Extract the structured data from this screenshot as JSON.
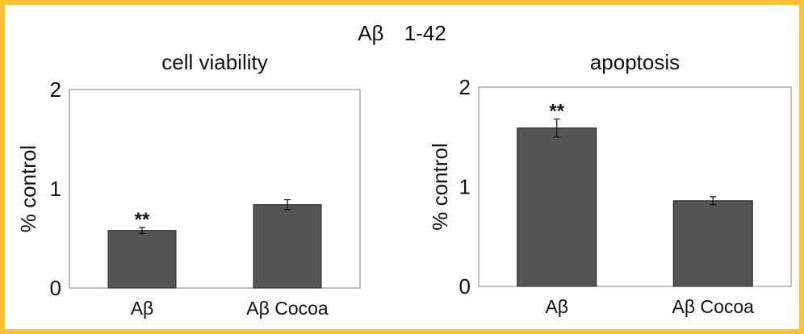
{
  "figure_title": "Aβ 1-42",
  "colors": {
    "frame": "#fbc234",
    "bar": "#555555",
    "plot_border": "#808080"
  },
  "chart_data": [
    {
      "type": "bar",
      "title": "cell viability",
      "ylabel": "% control",
      "xlabel": "",
      "categories": [
        "Aβ",
        "Aβ Cocoa"
      ],
      "values": [
        0.58,
        0.84
      ],
      "errors": [
        0.03,
        0.05
      ],
      "annotations": [
        "**",
        ""
      ],
      "ylim": [
        0,
        2
      ],
      "yticks": [
        "0",
        "1",
        "2"
      ],
      "grid": false,
      "legend": "none"
    },
    {
      "type": "bar",
      "title": "apoptosis",
      "ylabel": "% control",
      "xlabel": "",
      "categories": [
        "Aβ",
        "Aβ Cocoa"
      ],
      "values": [
        1.59,
        0.86
      ],
      "errors": [
        0.09,
        0.04
      ],
      "annotations": [
        "**",
        ""
      ],
      "ylim": [
        0,
        2
      ],
      "yticks": [
        "0",
        "1",
        "2"
      ],
      "grid": false,
      "legend": "none"
    }
  ]
}
